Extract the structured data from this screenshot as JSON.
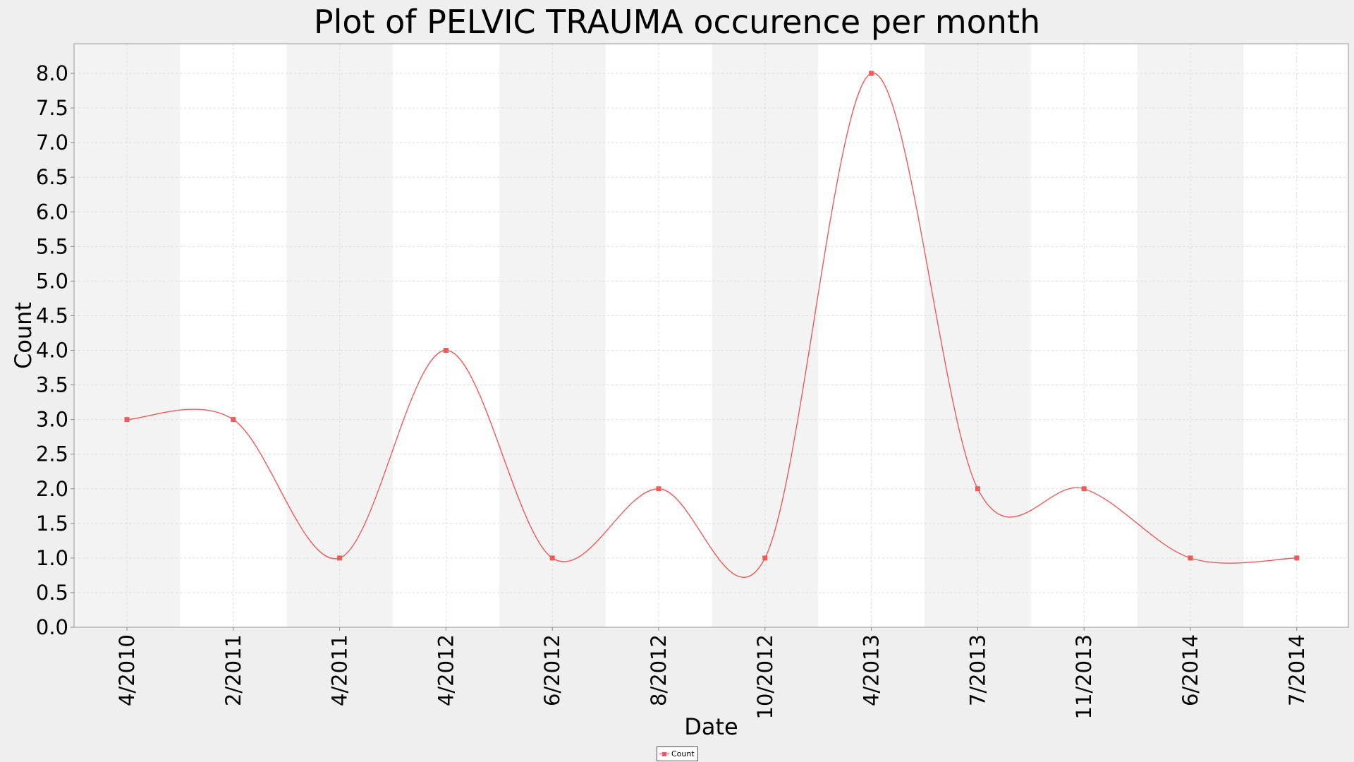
{
  "chart_data": {
    "type": "line",
    "title": "Plot of PELVIC TRAUMA occurence per month",
    "xlabel": "Date",
    "ylabel": "Count",
    "ylim": [
      0.0,
      8.0
    ],
    "yticks": [
      "0.0",
      "0.5",
      "1.0",
      "1.5",
      "2.0",
      "2.5",
      "3.0",
      "3.5",
      "4.0",
      "4.5",
      "5.0",
      "5.5",
      "6.0",
      "6.5",
      "7.0",
      "7.5",
      "8.0"
    ],
    "categories": [
      "4/2010",
      "2/2011",
      "4/2011",
      "4/2012",
      "6/2012",
      "8/2012",
      "10/2012",
      "4/2013",
      "7/2013",
      "11/2013",
      "6/2014",
      "7/2014"
    ],
    "series": [
      {
        "name": "Count",
        "values": [
          3,
          3,
          1,
          4,
          1,
          2,
          1,
          8,
          2,
          2,
          1,
          1
        ]
      }
    ],
    "interpolation": "smooth",
    "grid": true,
    "alternating_bands": true,
    "legend_position": "bottom-center",
    "colors": {
      "series": "#f05a5a",
      "background": "#efefef",
      "plot": "#ffffff",
      "band": "#f3f3f3",
      "grid": "#dcdcdc"
    }
  }
}
